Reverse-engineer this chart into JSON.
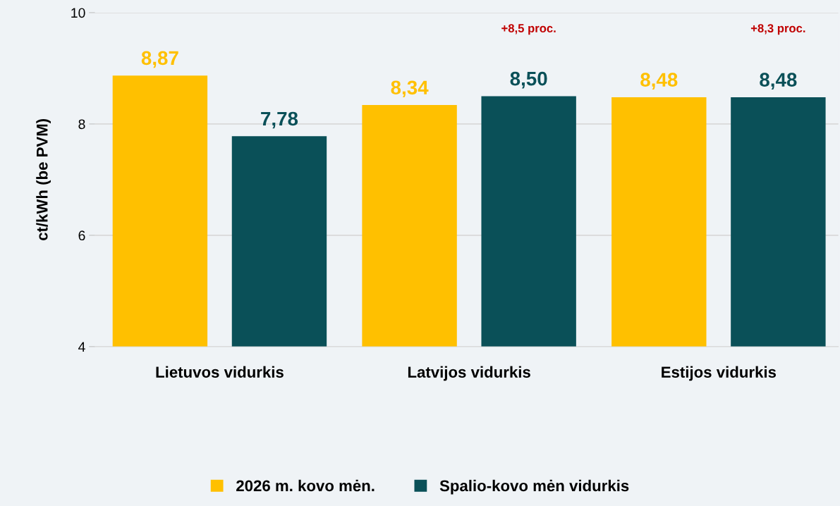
{
  "chart_data": {
    "type": "bar",
    "ylabel": "ct/kWh (be PVM)",
    "categories": [
      "Lietuvos vidurkis",
      "Latvijos vidurkis",
      "Estijos vidurkis"
    ],
    "series": [
      {
        "name": "2026 m. kovo mėn.",
        "color": "#ffc000",
        "values": [
          8.87,
          8.34,
          8.48
        ],
        "value_labels": [
          "8,87",
          "8,34",
          "8,48"
        ]
      },
      {
        "name": "Spalio-kovo mėn vidurkis",
        "color": "#0a5058",
        "values": [
          7.78,
          8.5,
          8.48
        ],
        "value_labels": [
          "7,78",
          "8,50",
          "8,48"
        ]
      }
    ],
    "annotations": [
      "+8,5 proc.",
      "+8,3 proc."
    ],
    "ylim": [
      4,
      10
    ],
    "yticks": [
      4,
      6,
      8,
      10
    ],
    "grid": "y",
    "legend": "bottom"
  }
}
